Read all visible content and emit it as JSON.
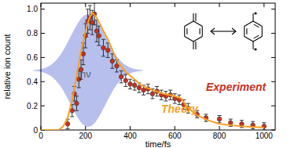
{
  "chart_data": {
    "type": "scatter",
    "x_label": "time/fs",
    "y_label": "relative ion count",
    "xlim": [
      0,
      1050
    ],
    "ylim": [
      0,
      1.05
    ],
    "xticks": [
      0,
      200,
      400,
      600,
      800,
      1000
    ],
    "yticks": [
      0,
      {
        "value": 0.2,
        "label": "0.2"
      },
      {
        "value": 0.4,
        "label": "0.4"
      },
      {
        "value": 0.6,
        "label": "0.6"
      },
      {
        "value": 0.8,
        "label": "0.8"
      },
      {
        "value": 1,
        "label": "1.0"
      }
    ],
    "grid": false,
    "annotations": [
      {
        "text": "hν"
      }
    ],
    "series": [
      {
        "name": "Experiment",
        "type": "scatter",
        "marker": "circle",
        "color": "#c8321e",
        "x": [
          120,
          140,
          150,
          160,
          170,
          180,
          190,
          200,
          210,
          220,
          230,
          240,
          250,
          260,
          280,
          300,
          320,
          340,
          360,
          380,
          400,
          420,
          440,
          460,
          480,
          500,
          520,
          540,
          560,
          580,
          600,
          620,
          640,
          660,
          700,
          740,
          800,
          850,
          900,
          950,
          1000
        ],
        "values": [
          0.05,
          0.16,
          0.3,
          0.22,
          0.42,
          0.5,
          0.63,
          0.78,
          0.9,
          0.93,
          0.89,
          0.96,
          0.82,
          0.78,
          0.68,
          0.66,
          0.57,
          0.53,
          0.44,
          0.41,
          0.38,
          0.37,
          0.35,
          0.33,
          0.34,
          0.3,
          0.32,
          0.29,
          0.28,
          0.29,
          0.26,
          0.25,
          0.21,
          0.18,
          0.13,
          0.1,
          0.09,
          0.06,
          0.05,
          0.04,
          0.03
        ],
        "errors": [
          0.04,
          0.05,
          0.06,
          0.06,
          0.07,
          0.08,
          0.09,
          0.1,
          0.1,
          0.1,
          0.1,
          0.09,
          0.09,
          0.08,
          0.07,
          0.06,
          0.06,
          0.05,
          0.05,
          0.05,
          0.04,
          0.04,
          0.04,
          0.04,
          0.04,
          0.04,
          0.04,
          0.04,
          0.04,
          0.04,
          0.04,
          0.04,
          0.04,
          0.04,
          0.03,
          0.03,
          0.03,
          0.03,
          0.03,
          0.03,
          0.03
        ]
      },
      {
        "name": "Theory",
        "type": "line",
        "line_style": "solid",
        "color": "#f7a023",
        "x": [
          0,
          80,
          100,
          120,
          140,
          160,
          180,
          200,
          220,
          230,
          250,
          280,
          300,
          330,
          350,
          380,
          400,
          450,
          500,
          550,
          600,
          630,
          650,
          680,
          700,
          750,
          800,
          900,
          1000
        ],
        "values": [
          0,
          0,
          0.03,
          0.1,
          0.25,
          0.45,
          0.65,
          0.82,
          0.94,
          0.97,
          0.93,
          0.82,
          0.75,
          0.62,
          0.55,
          0.48,
          0.45,
          0.37,
          0.33,
          0.3,
          0.28,
          0.26,
          0.2,
          0.15,
          0.12,
          0.08,
          0.05,
          0.03,
          0.02
        ]
      }
    ]
  }
}
